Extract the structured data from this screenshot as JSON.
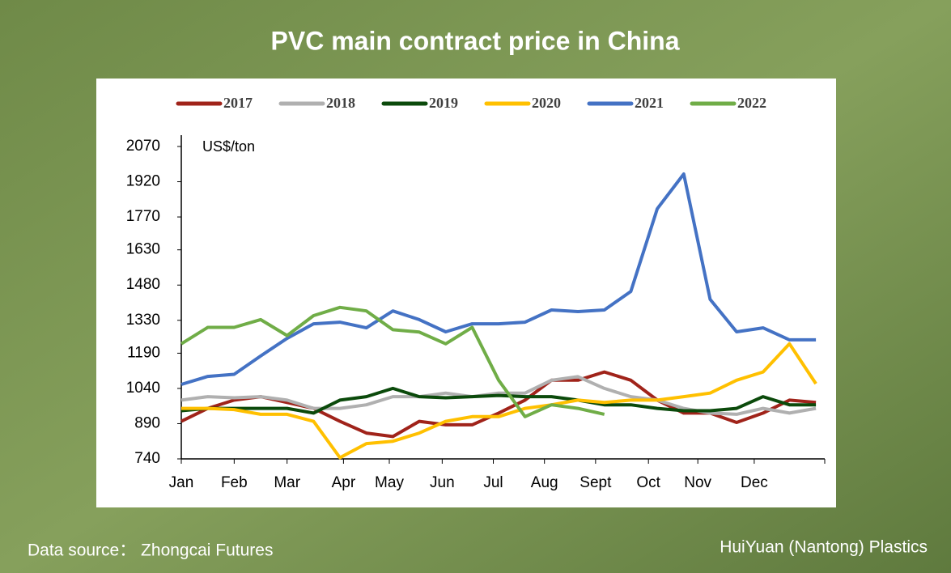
{
  "chart_data": {
    "type": "line",
    "title": "PVC main contract price in China",
    "ylabel": "US$/ton",
    "source": "Data source：  Zhongcai Futures",
    "brand": "HuiYuan (Nantong) Plastics",
    "x": [
      0,
      15,
      30,
      45,
      60,
      75,
      90,
      105,
      120,
      135,
      150,
      165,
      180,
      195,
      210,
      225,
      240,
      255,
      270,
      285,
      300,
      315,
      330,
      345,
      360
    ],
    "xlim": [
      0,
      365
    ],
    "xticks": [
      {
        "value": 0,
        "label": "Jan"
      },
      {
        "value": 30,
        "label": "Feb"
      },
      {
        "value": 60,
        "label": "Mar"
      },
      {
        "value": 92,
        "label": "Apr"
      },
      {
        "value": 118,
        "label": "May"
      },
      {
        "value": 148,
        "label": "Jun"
      },
      {
        "value": 177,
        "label": "Jul"
      },
      {
        "value": 206,
        "label": "Aug"
      },
      {
        "value": 235,
        "label": "Sept"
      },
      {
        "value": 265,
        "label": "Oct"
      },
      {
        "value": 293,
        "label": "Nov"
      },
      {
        "value": 325,
        "label": "Dec"
      },
      {
        "value": 365,
        "label": ""
      }
    ],
    "ylim": [
      740,
      2070
    ],
    "yticks": [
      740,
      890,
      1040,
      1190,
      1330,
      1480,
      1630,
      1770,
      1920,
      2070
    ],
    "series": [
      {
        "name": "2017",
        "color": "#a0231a",
        "values": [
          900,
          955,
          990,
          1005,
          980,
          955,
          900,
          850,
          835,
          900,
          885,
          885,
          935,
          990,
          1075,
          1075,
          1110,
          1075,
          990,
          935,
          935,
          895,
          935,
          990,
          980
        ]
      },
      {
        "name": "2018",
        "color": "#b0b0b0",
        "values": [
          990,
          1005,
          1000,
          1005,
          990,
          955,
          955,
          970,
          1005,
          1005,
          1020,
          1005,
          1020,
          1020,
          1075,
          1090,
          1040,
          1005,
          990,
          955,
          935,
          930,
          955,
          935,
          955
        ]
      },
      {
        "name": "2019",
        "color": "#0b4a0b",
        "values": [
          945,
          955,
          955,
          955,
          955,
          935,
          990,
          1005,
          1040,
          1005,
          1000,
          1005,
          1010,
          1005,
          1005,
          990,
          970,
          970,
          955,
          945,
          945,
          955,
          1005,
          970,
          970
        ]
      },
      {
        "name": "2020",
        "color": "#ffc000",
        "values": [
          955,
          955,
          950,
          930,
          930,
          900,
          745,
          805,
          815,
          850,
          900,
          920,
          920,
          955,
          970,
          990,
          980,
          990,
          990,
          1005,
          1020,
          1075,
          1110,
          1230,
          1060
        ]
      },
      {
        "name": "2021",
        "color": "#4472c4",
        "values": [
          1057,
          1091,
          1100,
          1178,
          1253,
          1315,
          1322,
          1298,
          1370,
          1333,
          1281,
          1315,
          1315,
          1322,
          1374,
          1367,
          1374,
          1453,
          1805,
          1953,
          1419,
          1281,
          1298,
          1247,
          1247
        ]
      },
      {
        "name": "2022",
        "color": "#70ad47",
        "values": [
          1230,
          1300,
          1300,
          1333,
          1265,
          1350,
          1385,
          1370,
          1290,
          1280,
          1230,
          1300,
          1075,
          920,
          970,
          955,
          930,
          null,
          null,
          null,
          null,
          null,
          null,
          null,
          null
        ]
      }
    ]
  }
}
